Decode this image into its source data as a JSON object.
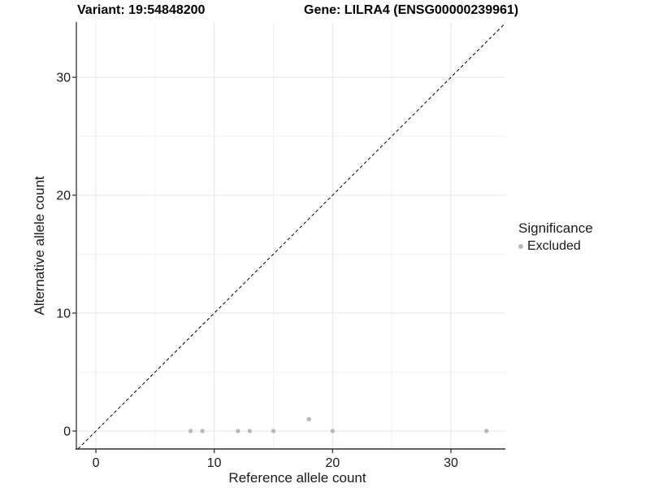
{
  "header": {
    "variant_title": "Variant: 19:54848200",
    "gene_title": "Gene: LILRA4 (ENSG00000239961)"
  },
  "chart_data": {
    "type": "scatter",
    "xlabel": "Reference allele count",
    "ylabel": "Alternative allele count",
    "xlim": [
      -1.65,
      34.6
    ],
    "ylim": [
      -1.52,
      34.69
    ],
    "x_major_ticks": [
      0,
      10,
      20,
      30
    ],
    "y_major_ticks": [
      0,
      10,
      20,
      30
    ],
    "x_minor_ticks": [
      5,
      15,
      25
    ],
    "y_minor_ticks": [
      5,
      15,
      25
    ],
    "grid": true,
    "identity_line": {
      "type": "dashed",
      "color": "#000000",
      "from": "bottom-left",
      "to": "top-right",
      "equation": "y = x"
    },
    "series": [
      {
        "name": "Excluded",
        "color": "#b9b9b9",
        "points": [
          [
            8,
            0
          ],
          [
            9,
            0
          ],
          [
            12,
            0
          ],
          [
            13,
            0
          ],
          [
            15,
            0
          ],
          [
            18,
            1
          ],
          [
            20,
            0
          ],
          [
            33,
            0
          ]
        ]
      }
    ],
    "legend": {
      "title": "Significance",
      "position": "right",
      "entries": [
        {
          "label": "Excluded",
          "color": "#b9b9b9"
        }
      ]
    },
    "style": {
      "grid_major_color": "#e6e6e6",
      "grid_minor_color": "#f2f2f2",
      "axis_line_color": "#333333",
      "tick_label_color": "#1a1a1a",
      "background": "#ffffff"
    }
  }
}
